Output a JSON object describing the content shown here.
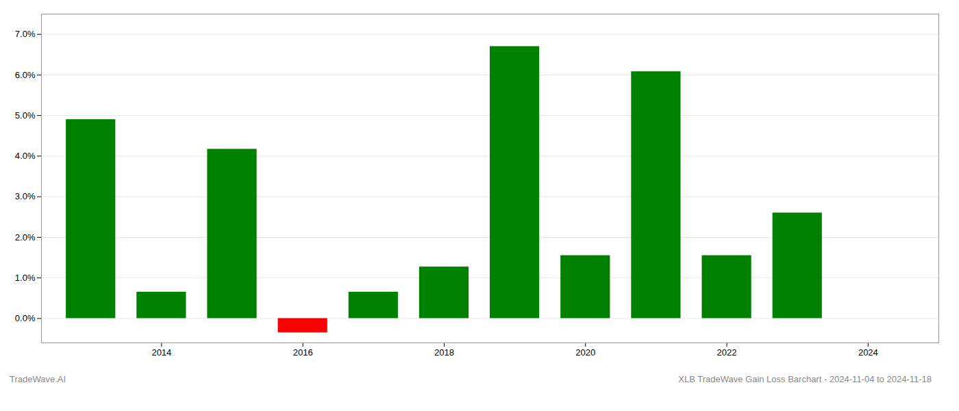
{
  "chart_data": {
    "type": "bar",
    "title": "XLB TradeWave Gain Loss Barchart - 2024-11-04 to 2024-11-18",
    "annotations": [
      "TradeWave.AI"
    ],
    "x": [
      2013,
      2014,
      2015,
      2016,
      2017,
      2018,
      2019,
      2020,
      2021,
      2022,
      2023
    ],
    "values": [
      0.049,
      0.0065,
      0.0417,
      -0.0035,
      0.0065,
      0.0127,
      0.067,
      0.0155,
      0.0608,
      0.0155,
      0.026
    ],
    "colors": [
      "#008000",
      "#008000",
      "#008000",
      "#ff0000",
      "#008000",
      "#008000",
      "#008000",
      "#008000",
      "#008000",
      "#008000",
      "#008000"
    ],
    "xlim": [
      2012.3,
      2025.0
    ],
    "xticks": [
      2014,
      2016,
      2018,
      2020,
      2022,
      2024
    ],
    "ylim": [
      -0.006,
      0.075
    ],
    "yticks": [
      {
        "value": 0.0,
        "label": "0.0%"
      },
      {
        "value": 0.01,
        "label": "1.0%"
      },
      {
        "value": 0.02,
        "label": "2.0%"
      },
      {
        "value": 0.03,
        "label": "3.0%"
      },
      {
        "value": 0.04,
        "label": "4.0%"
      },
      {
        "value": 0.05,
        "label": "5.0%"
      },
      {
        "value": 0.06,
        "label": "6.0%"
      },
      {
        "value": 0.07,
        "label": "7.0%"
      }
    ],
    "grid": true
  }
}
